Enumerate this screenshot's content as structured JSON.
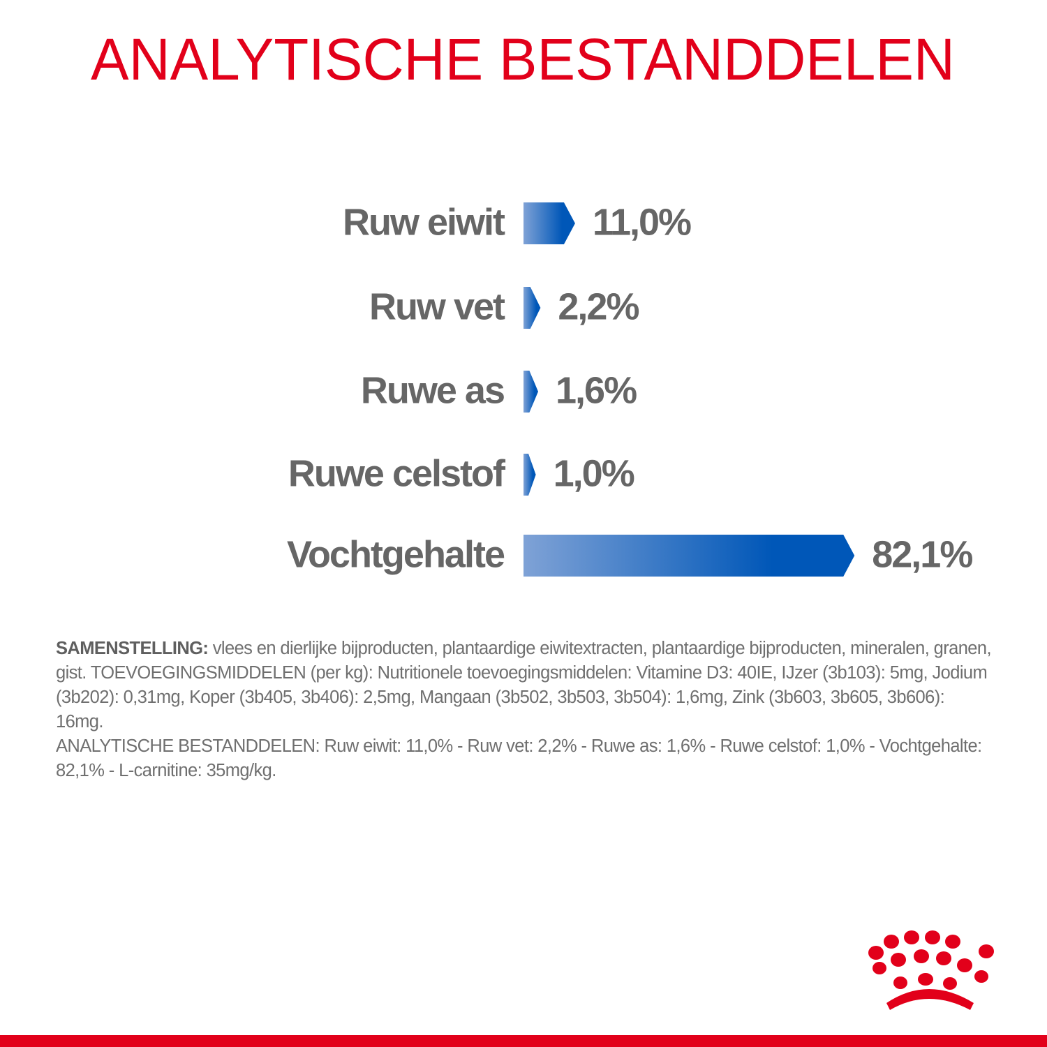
{
  "chart_data": {
    "type": "bar",
    "title": "ANALYTISCHE BESTANDDELEN",
    "categories": [
      "Ruw eiwit",
      "Ruw vet",
      "Ruwe as",
      "Ruwe celstof",
      "Vochtgehalte"
    ],
    "values": [
      11.0,
      2.2,
      1.6,
      1.0,
      82.1
    ],
    "value_labels": [
      "11,0%",
      "2,2%",
      "1,6%",
      "1,0%",
      "82,1%"
    ],
    "color": [
      "#7fa2d6",
      "#0057b8"
    ]
  },
  "composition": {
    "label": "SAMENSTELLING:",
    "text": "vlees en dierlijke bijproducten, plantaardige eiwitextracten, plantaardige bijproducten, mineralen, granen, gist. TOEVOEGINGSMIDDELEN (per kg): Nutritionele toevoegingsmiddelen: Vitamine D3: 40IE, IJzer (3b103): 5mg, Jodium (3b202): 0,31mg, Koper (3b405, 3b406): 2,5mg, Mangaan (3b502, 3b503, 3b504): 1,6mg, Zink (3b603, 3b605, 3b606): 16mg.",
    "analysis": "ANALYTISCHE BESTANDDELEN: Ruw eiwit: 11,0% - Ruw vet: 2,2% - Ruwe as: 1,6% - Ruwe celstof: 1,0% - Vochtgehalte: 82,1% - L-carnitine: 35mg/kg."
  }
}
